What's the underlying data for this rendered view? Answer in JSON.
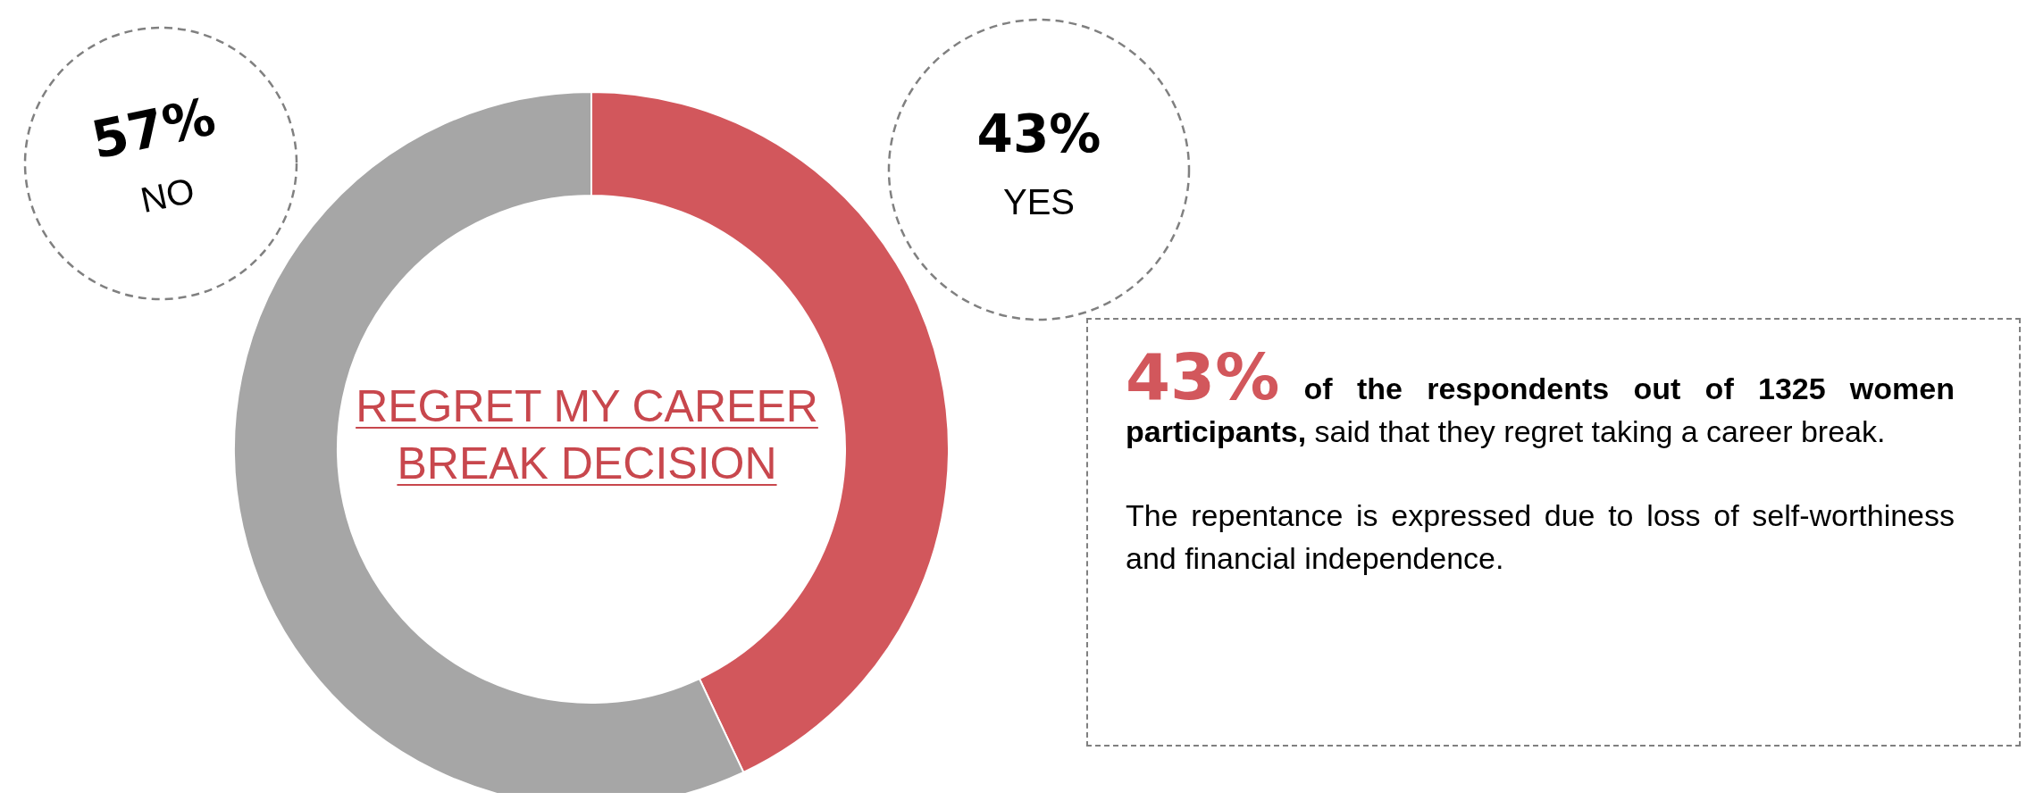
{
  "chart_data": {
    "type": "donut",
    "title": "REGRET MY CAREER BREAK DECISION",
    "categories": [
      "YES",
      "NO"
    ],
    "values": [
      43,
      57
    ],
    "colors": [
      "#d2575c",
      "#a6a6a6"
    ],
    "value_labels": [
      "43%",
      "57%"
    ],
    "annotations": [
      "43%",
      "of the respondents out of 1325 women participants,",
      "said that they regret taking a career break.",
      "The repentance is expressed due to loss of self-worthiness and financial independence."
    ]
  }
}
